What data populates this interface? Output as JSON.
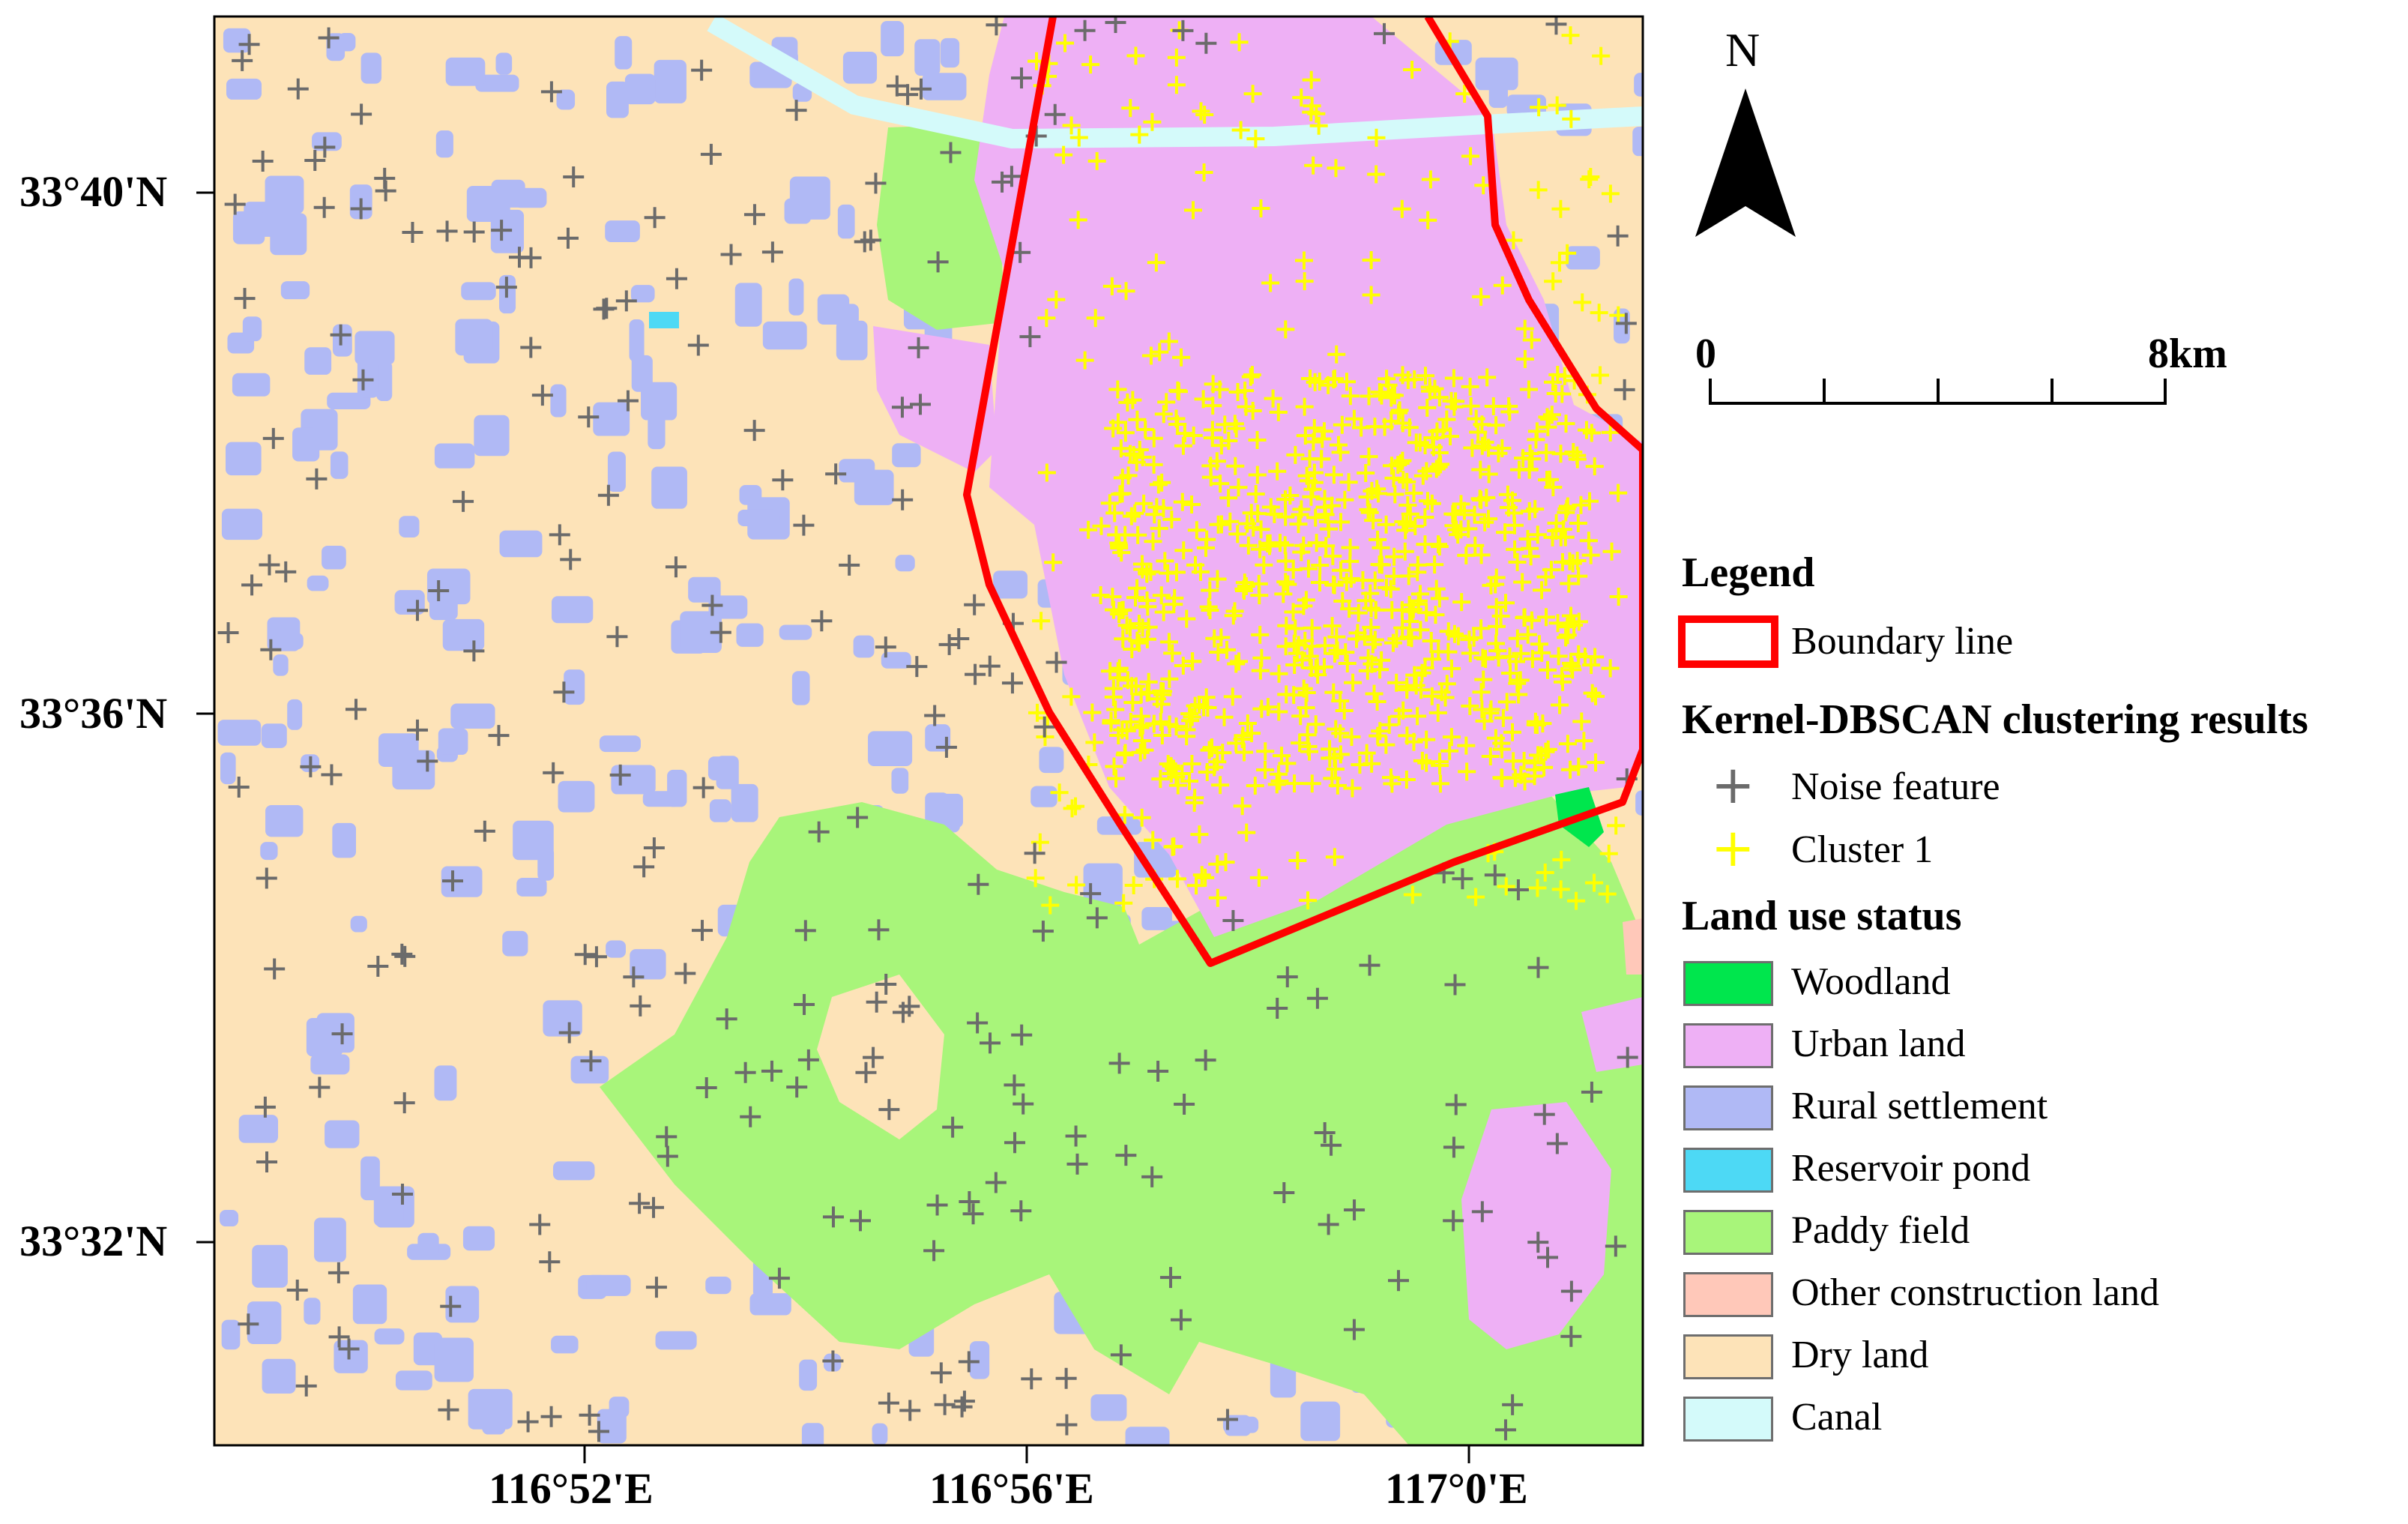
{
  "map": {
    "latitude_labels": [
      "33°40'N",
      "33°36'N",
      "33°32'N"
    ],
    "longitude_labels": [
      "116°52'E",
      "116°56'E",
      "117°0'E"
    ],
    "north_arrow_label": "N",
    "scale_bar": {
      "start_label": "0",
      "end_label": "8km"
    },
    "legend": {
      "title": "Legend",
      "boundary_label": "Boundary line",
      "boundary_color": "#ff0000",
      "clustering_title": "Kernel-DBSCAN clustering results",
      "clustering_items": [
        {
          "label": "Noise feature",
          "color": "#6b6b6b",
          "icon": "plus-icon"
        },
        {
          "label": "Cluster 1",
          "color": "#ffff00",
          "icon": "plus-icon"
        }
      ],
      "landuse_title": "Land use status",
      "landuse_items": [
        {
          "label": "Woodland",
          "color": "#00e64d"
        },
        {
          "label": "Urban land",
          "color": "#eeb0f5"
        },
        {
          "label": "Rural settlement",
          "color": "#b0b9f5"
        },
        {
          "label": "Reservoir pond",
          "color": "#4dd9f5"
        },
        {
          "label": "Paddy field",
          "color": "#a8f57a"
        },
        {
          "label": "Other construction land",
          "color": "#ffc8b9"
        },
        {
          "label": "Dry land",
          "color": "#fde3b8"
        },
        {
          "label": "Canal",
          "color": "#d4fafa"
        }
      ]
    }
  }
}
